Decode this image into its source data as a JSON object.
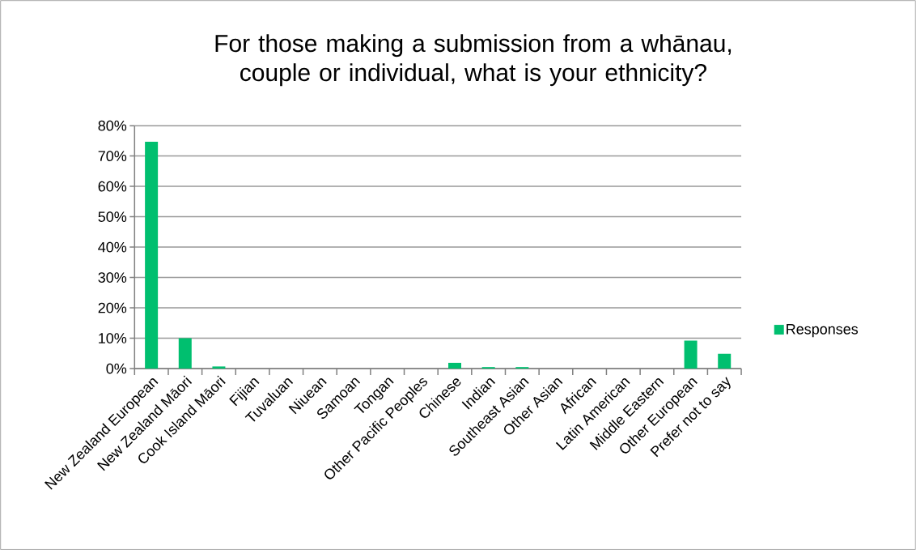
{
  "chart_data": {
    "type": "bar",
    "title": "For those making a submission from a whānau, couple or individual, what is your ethnicity?",
    "categories": [
      "New Zealand European",
      "New Zealand Māori",
      "Cook Island Māori",
      "Fijian",
      "Tuvaluan",
      "Niuean",
      "Samoan",
      "Tongan",
      "Other Pacific Peoples",
      "Chinese",
      "Indian",
      "Southeast Asian",
      "Other Asian",
      "African",
      "Latin American",
      "Middle Eastern",
      "Other European",
      "Prefer not to say"
    ],
    "series": [
      {
        "name": "Responses",
        "color": "#00bf6f",
        "values": [
          74.7,
          10.0,
          0.7,
          0,
          0,
          0,
          0,
          0,
          0,
          1.9,
          0.5,
          0.5,
          0,
          0,
          0,
          0,
          9.2,
          4.9
        ]
      }
    ],
    "ylim": [
      0,
      80
    ],
    "yticks": [
      {
        "value": 0,
        "label": "0%"
      },
      {
        "value": 10,
        "label": "10%"
      },
      {
        "value": 20,
        "label": "20%"
      },
      {
        "value": 30,
        "label": "30%"
      },
      {
        "value": 40,
        "label": "40%"
      },
      {
        "value": 50,
        "label": "50%"
      },
      {
        "value": 60,
        "label": "60%"
      },
      {
        "value": 70,
        "label": "70%"
      },
      {
        "value": 80,
        "label": "80%"
      }
    ],
    "grid": "y",
    "legend": "right"
  }
}
